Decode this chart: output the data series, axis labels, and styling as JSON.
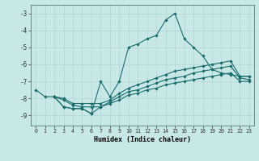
{
  "xlabel": "Humidex (Indice chaleur)",
  "background_color": "#c8e8e8",
  "grid_color": "#b0d4d4",
  "line_color": "#1a6b6b",
  "xlim": [
    -0.5,
    23.5
  ],
  "ylim": [
    -9.6,
    -2.5
  ],
  "xticks": [
    0,
    1,
    2,
    3,
    4,
    5,
    6,
    7,
    8,
    9,
    10,
    11,
    12,
    13,
    14,
    15,
    16,
    17,
    18,
    19,
    20,
    21,
    22,
    23
  ],
  "yticks": [
    -9,
    -8,
    -7,
    -6,
    -5,
    -4,
    -3
  ],
  "series1": [
    -7.5,
    -7.9,
    -7.9,
    -8.5,
    -8.6,
    -8.6,
    -8.9,
    -7.0,
    -7.9,
    -7.0,
    -5.0,
    -4.8,
    -4.5,
    -4.3,
    -3.4,
    -3.0,
    -4.5,
    -5.0,
    -5.5,
    -6.3,
    -6.5,
    -6.6,
    -6.7,
    -6.7
  ],
  "series2": [
    null,
    null,
    -7.9,
    -8.0,
    -8.3,
    -8.3,
    -8.3,
    -8.3,
    -8.1,
    -7.7,
    -7.4,
    -7.2,
    -7.0,
    -6.8,
    -6.6,
    -6.4,
    -6.3,
    -6.2,
    -6.1,
    -6.0,
    -5.9,
    -5.8,
    -6.7,
    -6.7
  ],
  "series3": [
    null,
    null,
    -7.9,
    -8.1,
    -8.4,
    -8.5,
    -8.5,
    -8.5,
    -8.2,
    -7.9,
    -7.6,
    -7.5,
    -7.3,
    -7.1,
    -6.9,
    -6.8,
    -6.7,
    -6.5,
    -6.4,
    -6.3,
    -6.2,
    -6.1,
    -6.8,
    -6.9
  ],
  "series4": [
    null,
    null,
    -7.9,
    -8.5,
    -8.6,
    -8.6,
    -8.9,
    -8.5,
    -8.3,
    -8.1,
    -7.8,
    -7.7,
    -7.5,
    -7.4,
    -7.2,
    -7.1,
    -7.0,
    -6.9,
    -6.8,
    -6.7,
    -6.6,
    -6.5,
    -7.0,
    -7.0
  ]
}
